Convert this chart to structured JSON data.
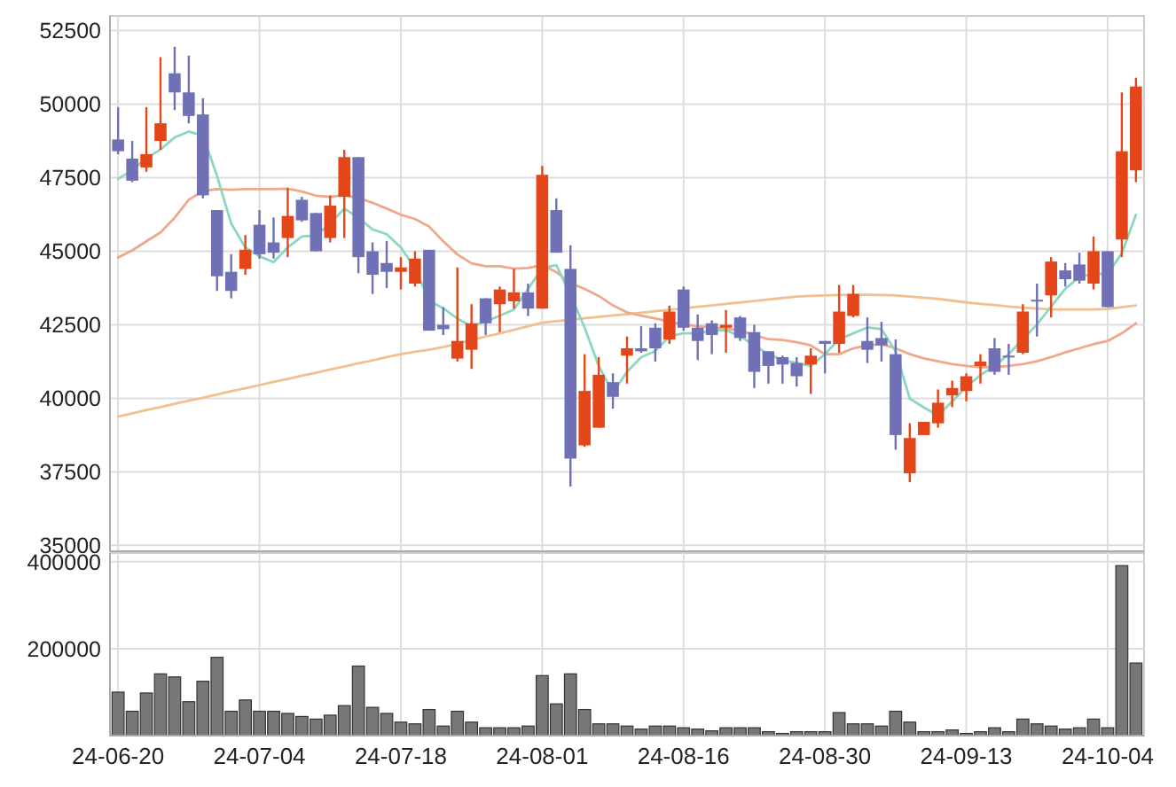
{
  "chart_data": [
    {
      "type": "candlestick",
      "grid": true,
      "tick_labels": "y",
      "ylim": [
        34800,
        53000
      ],
      "yticks": [
        35000,
        37500,
        40000,
        42500,
        45000,
        47500,
        50000,
        52500
      ],
      "categories": [
        null,
        null,
        null,
        null,
        null,
        null,
        null,
        null,
        null,
        null,
        null,
        null,
        null,
        null,
        null,
        null,
        null,
        null,
        null,
        null,
        null,
        null,
        null,
        null,
        null,
        null,
        null,
        null,
        null,
        null,
        null,
        null,
        null,
        null,
        null,
        null,
        null,
        null,
        null,
        null,
        null,
        null,
        null,
        null,
        null,
        null,
        null,
        null,
        null,
        null,
        null,
        null,
        null,
        null,
        null,
        null,
        null,
        null,
        null,
        null,
        null,
        null,
        null,
        null,
        null,
        null,
        null,
        null,
        null,
        null,
        null,
        null,
        null
      ],
      "ohlc": [
        [
          48800,
          49900,
          48300,
          48400
        ],
        [
          48150,
          48750,
          47350,
          47400
        ],
        [
          47850,
          49900,
          47700,
          48300
        ],
        [
          48750,
          51600,
          48450,
          49350
        ],
        [
          51050,
          51950,
          49800,
          50400
        ],
        [
          50400,
          51650,
          49350,
          49600
        ],
        [
          49650,
          50200,
          46800,
          46900
        ],
        [
          46400,
          46400,
          43650,
          44150
        ],
        [
          44300,
          44900,
          43400,
          43650
        ],
        [
          44400,
          45550,
          44200,
          45050
        ],
        [
          45900,
          46400,
          44750,
          44900
        ],
        [
          45300,
          46150,
          44750,
          44950
        ],
        [
          45450,
          47150,
          44800,
          46200
        ],
        [
          46750,
          46850,
          46000,
          46050
        ],
        [
          46300,
          46300,
          45000,
          45000
        ],
        [
          45450,
          46900,
          45300,
          46550
        ],
        [
          46850,
          48450,
          45450,
          48200
        ],
        [
          48200,
          48200,
          44250,
          44800
        ],
        [
          45000,
          45300,
          43550,
          44200
        ],
        [
          44600,
          45350,
          43750,
          44300
        ],
        [
          44300,
          44800,
          43700,
          44450
        ],
        [
          43900,
          45000,
          43800,
          44750
        ],
        [
          45050,
          45050,
          42300,
          42300
        ],
        [
          42500,
          43100,
          42150,
          42350
        ],
        [
          41350,
          44450,
          41250,
          41950
        ],
        [
          41650,
          43200,
          41000,
          42550
        ],
        [
          43400,
          43400,
          42150,
          42550
        ],
        [
          43200,
          43800,
          42250,
          43700
        ],
        [
          43300,
          44400,
          43050,
          43600
        ],
        [
          43600,
          43900,
          42800,
          43050
        ],
        [
          43050,
          47900,
          43050,
          47600
        ],
        [
          46400,
          46800,
          44950,
          44950
        ],
        [
          44400,
          45200,
          37000,
          37950
        ],
        [
          38400,
          41500,
          38350,
          40250
        ],
        [
          39000,
          41400,
          39000,
          40800
        ],
        [
          40550,
          40850,
          39650,
          40050
        ],
        [
          41450,
          42100,
          40500,
          41700
        ],
        [
          41700,
          42450,
          41550,
          41600
        ],
        [
          42400,
          42550,
          41250,
          41700
        ],
        [
          42000,
          43150,
          41850,
          42950
        ],
        [
          43700,
          43800,
          42300,
          42400
        ],
        [
          42400,
          42850,
          41300,
          41950
        ],
        [
          42550,
          42650,
          41500,
          42150
        ],
        [
          42400,
          43000,
          41550,
          42500
        ],
        [
          42750,
          42800,
          41950,
          42050
        ],
        [
          42250,
          42500,
          40350,
          40900
        ],
        [
          41600,
          41600,
          40500,
          41100
        ],
        [
          41400,
          41450,
          40500,
          41150
        ],
        [
          41200,
          41400,
          40400,
          40750
        ],
        [
          41150,
          41700,
          40150,
          41450
        ],
        [
          41950,
          41950,
          40850,
          41850
        ],
        [
          41850,
          43850,
          41550,
          42950
        ],
        [
          42800,
          43850,
          42750,
          43550
        ],
        [
          41950,
          42750,
          41200,
          41650
        ],
        [
          42050,
          42600,
          41250,
          41800
        ],
        [
          41500,
          42000,
          38250,
          38750
        ],
        [
          37450,
          39150,
          37150,
          38650
        ],
        [
          38750,
          39200,
          38750,
          39200
        ],
        [
          39150,
          40300,
          39000,
          39850
        ],
        [
          40100,
          40600,
          39700,
          40350
        ],
        [
          40250,
          40850,
          39900,
          40750
        ],
        [
          41100,
          41500,
          40500,
          41250
        ],
        [
          41700,
          42050,
          40800,
          40900
        ],
        [
          41450,
          41850,
          40800,
          41400
        ],
        [
          41550,
          43200,
          41500,
          42950
        ],
        [
          43350,
          43900,
          42100,
          43300
        ],
        [
          43500,
          44800,
          42750,
          44650
        ],
        [
          44350,
          44600,
          43800,
          44050
        ],
        [
          44550,
          44950,
          43900,
          44000
        ],
        [
          43900,
          45500,
          43700,
          45000
        ],
        [
          45000,
          45000,
          43100,
          43100
        ],
        [
          45400,
          50400,
          44800,
          48400
        ],
        [
          47750,
          50900,
          47350,
          50600
        ]
      ],
      "colors": [
        "#6f70b5",
        "#6f70b5",
        "#e4461a",
        "#e4461a",
        "#6f70b5",
        "#6f70b5",
        "#6f70b5",
        "#6f70b5",
        "#6f70b5",
        "#e4461a",
        "#6f70b5",
        "#6f70b5",
        "#e4461a",
        "#6f70b5",
        "#6f70b5",
        "#e4461a",
        "#e4461a",
        "#6f70b5",
        "#6f70b5",
        "#6f70b5",
        "#e4461a",
        "#e4461a",
        "#6f70b5",
        "#6f70b5",
        "#e4461a",
        "#e4461a",
        "#6f70b5",
        "#e4461a",
        "#e4461a",
        "#6f70b5",
        "#e4461a",
        "#6f70b5",
        "#6f70b5",
        "#e4461a",
        "#e4461a",
        "#6f70b5",
        "#e4461a",
        "#6f70b5",
        "#6f70b5",
        "#e4461a",
        "#6f70b5",
        "#6f70b5",
        "#6f70b5",
        "#e4461a",
        "#6f70b5",
        "#6f70b5",
        "#6f70b5",
        "#6f70b5",
        "#6f70b5",
        "#e4461a",
        "#6f70b5",
        "#e4461a",
        "#e4461a",
        "#6f70b5",
        "#6f70b5",
        "#6f70b5",
        "#e4461a",
        "#e4461a",
        "#e4461a",
        "#e4461a",
        "#e4461a",
        "#e4461a",
        "#6f70b5",
        "#6f70b5",
        "#e4461a",
        "#6f70b5",
        "#e4461a",
        "#6f70b5",
        "#6f70b5",
        "#e4461a",
        "#6f70b5",
        "#e4461a",
        "#e4461a"
      ],
      "series": [
        {
          "type": "line",
          "color": "#f2c090",
          "values": [
            39380,
            39490,
            39600,
            39700,
            39810,
            39920,
            40020,
            40130,
            40240,
            40340,
            40450,
            40560,
            40660,
            40770,
            40870,
            40980,
            41080,
            41190,
            41290,
            41400,
            41500,
            41580,
            41650,
            41740,
            41860,
            41980,
            42100,
            42210,
            42330,
            42450,
            42570,
            42620,
            42670,
            42720,
            42770,
            42820,
            42860,
            42910,
            42960,
            43010,
            43060,
            43110,
            43160,
            43210,
            43260,
            43310,
            43360,
            43410,
            43460,
            43480,
            43500,
            43510,
            43520,
            43520,
            43510,
            43500,
            43460,
            43420,
            43380,
            43320,
            43260,
            43210,
            43170,
            43120,
            43080,
            43050,
            43020,
            43020,
            43020,
            43020,
            43040,
            43100,
            43160
          ]
        },
        {
          "type": "line",
          "color": "#eea88a",
          "values": [
            44790,
            45030,
            45340,
            45640,
            46140,
            46750,
            47050,
            47110,
            47090,
            47110,
            47110,
            47110,
            47130,
            47030,
            46890,
            46850,
            46910,
            46810,
            46650,
            46450,
            46240,
            46100,
            45840,
            45340,
            44890,
            44590,
            44490,
            44490,
            44410,
            44430,
            44530,
            44290,
            43920,
            43720,
            43480,
            43160,
            42920,
            42810,
            42710,
            42610,
            42510,
            42450,
            42410,
            42370,
            42310,
            42150,
            42010,
            41980,
            41910,
            41800,
            41500,
            41500,
            41700,
            41800,
            41840,
            41700,
            41500,
            41360,
            41260,
            41160,
            41100,
            41060,
            41060,
            41100,
            41160,
            41260,
            41400,
            41560,
            41700,
            41840,
            41950,
            42210,
            42550
          ]
        },
        {
          "type": "line",
          "color": "#8ad8c0",
          "values": [
            47460,
            47760,
            48160,
            48460,
            48870,
            49070,
            48930,
            47560,
            45940,
            45130,
            44830,
            44630,
            45130,
            45500,
            45540,
            45940,
            46450,
            46140,
            45740,
            45580,
            45130,
            44430,
            43320,
            43060,
            42710,
            42450,
            42610,
            42810,
            43020,
            43720,
            44430,
            44530,
            43520,
            42410,
            41100,
            40190,
            40900,
            41400,
            41600,
            42110,
            42210,
            42210,
            42310,
            42310,
            42110,
            41800,
            41500,
            41300,
            41200,
            41100,
            41500,
            42010,
            42210,
            42410,
            42350,
            41600,
            39990,
            39690,
            39420,
            39890,
            40390,
            40790,
            41100,
            41500,
            42010,
            42510,
            43120,
            43720,
            44130,
            44230,
            44230,
            44930,
            46240
          ]
        }
      ]
    },
    {
      "type": "bar",
      "grid": true,
      "color": "#777777",
      "ylim": [
        0,
        420000
      ],
      "yticks": [
        200000,
        400000
      ],
      "categories": [
        "24-06-20",
        null,
        null,
        null,
        null,
        null,
        null,
        null,
        null,
        null,
        "24-07-04",
        null,
        null,
        null,
        null,
        null,
        null,
        null,
        null,
        null,
        "24-07-18",
        null,
        null,
        null,
        null,
        null,
        null,
        null,
        null,
        null,
        "24-08-01",
        null,
        null,
        null,
        null,
        null,
        null,
        null,
        null,
        null,
        "24-08-16",
        null,
        null,
        null,
        null,
        null,
        null,
        null,
        null,
        null,
        "24-08-30",
        null,
        null,
        null,
        null,
        null,
        null,
        null,
        null,
        null,
        "24-09-13",
        null,
        null,
        null,
        null,
        null,
        null,
        null,
        null,
        null,
        "24-10-04",
        null,
        null
      ],
      "values": [
        100000,
        56000,
        98000,
        142000,
        135000,
        78000,
        125000,
        180000,
        56000,
        82000,
        56000,
        56000,
        51000,
        44000,
        38000,
        47000,
        69000,
        160000,
        65000,
        51000,
        31000,
        27000,
        60000,
        22000,
        56000,
        31000,
        18000,
        18000,
        18000,
        22000,
        138000,
        73000,
        142000,
        60000,
        27000,
        27000,
        22000,
        15000,
        22000,
        22000,
        18000,
        15000,
        11000,
        18000,
        18000,
        18000,
        9000,
        5000,
        9000,
        9000,
        9000,
        53000,
        27000,
        27000,
        22000,
        56000,
        31000,
        9000,
        9000,
        13000,
        5000,
        9000,
        18000,
        9000,
        38000,
        27000,
        22000,
        15000,
        18000,
        38000,
        18000,
        391000,
        167000
      ]
    }
  ]
}
